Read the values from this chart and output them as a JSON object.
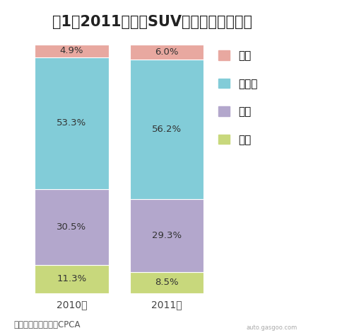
{
  "title": "图1：2011年国产SUV细分市场份额变化",
  "years": [
    "2010年",
    "2011年"
  ],
  "categories": [
    "低端",
    "中端",
    "中高端",
    "高端"
  ],
  "values_2010": [
    11.3,
    30.5,
    53.3,
    4.9
  ],
  "values_2011": [
    8.5,
    29.3,
    56.2,
    6.0
  ],
  "colors": [
    "#c8d87c",
    "#b3a7cc",
    "#82ccd8",
    "#e8a8a0"
  ],
  "source_text": "来源：盖世汽车网，CPCA",
  "legend_labels": [
    "高端",
    "中高端",
    "中端",
    "低端"
  ],
  "background_color": "#ffffff",
  "title_fontsize": 15,
  "label_fontsize": 9.5,
  "legend_fontsize": 11,
  "xtick_fontsize": 10,
  "bar_width": 0.28,
  "x_positions": [
    0.22,
    0.58
  ],
  "xlim": [
    0.0,
    1.05
  ],
  "ylim": [
    0,
    102
  ]
}
